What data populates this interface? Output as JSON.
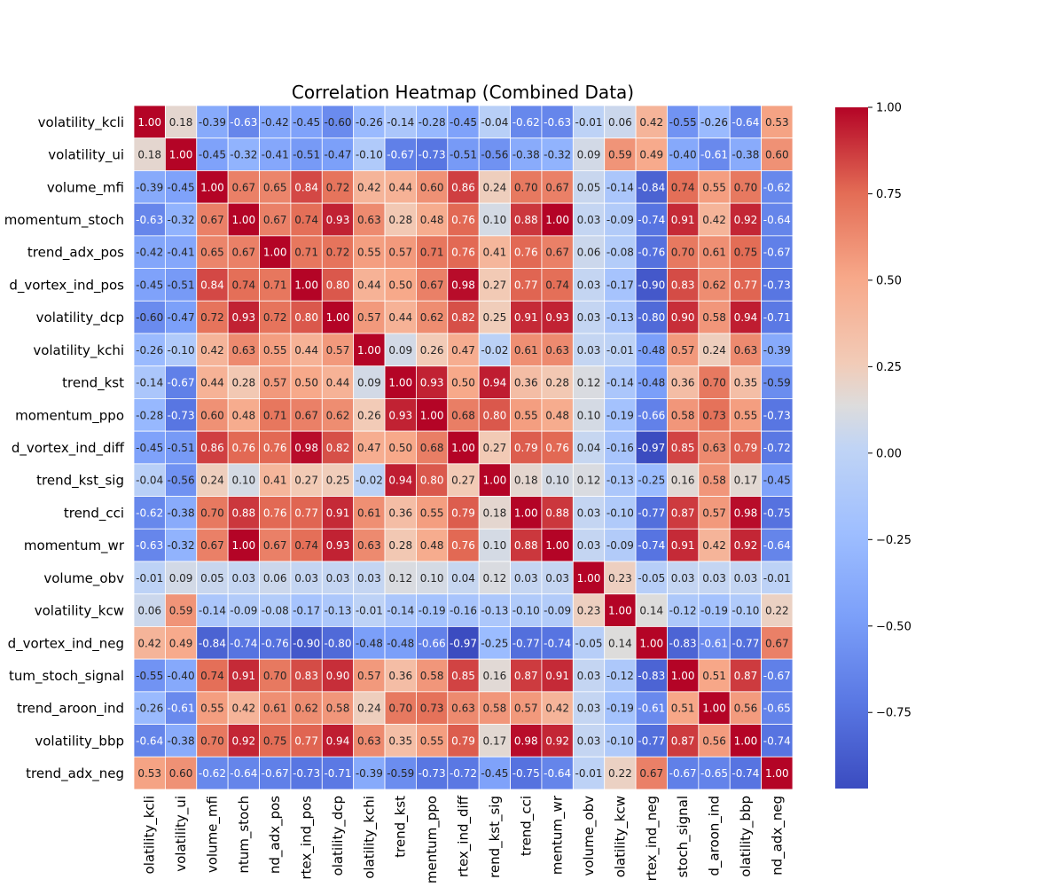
{
  "chart_data": {
    "type": "heatmap",
    "title": "Correlation Heatmap (Combined Data)",
    "colormap": "coolwarm",
    "value_format": "2 decimals",
    "labels": [
      "volatility_kcli",
      "volatility_ui",
      "volume_mfi",
      "momentum_stoch",
      "trend_adx_pos",
      "trend_vortex_ind_pos",
      "volatility_dcp",
      "volatility_kchi",
      "trend_kst",
      "momentum_ppo",
      "trend_vortex_ind_diff",
      "trend_kst_sig",
      "trend_cci",
      "momentum_wr",
      "volume_obv",
      "volatility_kcw",
      "trend_vortex_ind_neg",
      "momentum_stoch_signal",
      "trend_aroon_ind",
      "volatility_bbp",
      "trend_adx_neg"
    ],
    "matrix": [
      [
        1.0,
        0.18,
        -0.39,
        -0.63,
        -0.42,
        -0.45,
        -0.6,
        -0.26,
        -0.14,
        -0.28,
        -0.45,
        -0.04,
        -0.62,
        -0.63,
        -0.01,
        0.06,
        0.42,
        -0.55,
        -0.26,
        -0.64,
        0.53
      ],
      [
        0.18,
        1.0,
        -0.45,
        -0.32,
        -0.41,
        -0.51,
        -0.47,
        -0.1,
        -0.67,
        -0.73,
        -0.51,
        -0.56,
        -0.38,
        -0.32,
        0.09,
        0.59,
        0.49,
        -0.4,
        -0.61,
        -0.38,
        0.6
      ],
      [
        -0.39,
        -0.45,
        1.0,
        0.67,
        0.65,
        0.84,
        0.72,
        0.42,
        0.44,
        0.6,
        0.86,
        0.24,
        0.7,
        0.67,
        0.05,
        -0.14,
        -0.84,
        0.74,
        0.55,
        0.7,
        -0.62
      ],
      [
        -0.63,
        -0.32,
        0.67,
        1.0,
        0.67,
        0.74,
        0.93,
        0.63,
        0.28,
        0.48,
        0.76,
        0.1,
        0.88,
        1.0,
        0.03,
        -0.09,
        -0.74,
        0.91,
        0.42,
        0.92,
        -0.64
      ],
      [
        -0.42,
        -0.41,
        0.65,
        0.67,
        1.0,
        0.71,
        0.72,
        0.55,
        0.57,
        0.71,
        0.76,
        0.41,
        0.76,
        0.67,
        0.06,
        -0.08,
        -0.76,
        0.7,
        0.61,
        0.75,
        -0.67
      ],
      [
        -0.45,
        -0.51,
        0.84,
        0.74,
        0.71,
        1.0,
        0.8,
        0.44,
        0.5,
        0.67,
        0.98,
        0.27,
        0.77,
        0.74,
        0.03,
        -0.17,
        -0.9,
        0.83,
        0.62,
        0.77,
        -0.73
      ],
      [
        -0.6,
        -0.47,
        0.72,
        0.93,
        0.72,
        0.8,
        1.0,
        0.57,
        0.44,
        0.62,
        0.82,
        0.25,
        0.91,
        0.93,
        0.03,
        -0.13,
        -0.8,
        0.9,
        0.58,
        0.94,
        -0.71
      ],
      [
        -0.26,
        -0.1,
        0.42,
        0.63,
        0.55,
        0.44,
        0.57,
        1.0,
        0.09,
        0.26,
        0.47,
        -0.02,
        0.61,
        0.63,
        0.03,
        -0.01,
        -0.48,
        0.57,
        0.24,
        0.63,
        -0.39
      ],
      [
        -0.14,
        -0.67,
        0.44,
        0.28,
        0.57,
        0.5,
        0.44,
        0.09,
        1.0,
        0.93,
        0.5,
        0.94,
        0.36,
        0.28,
        0.12,
        -0.14,
        -0.48,
        0.36,
        0.7,
        0.35,
        -0.59
      ],
      [
        -0.28,
        -0.73,
        0.6,
        0.48,
        0.71,
        0.67,
        0.62,
        0.26,
        0.93,
        1.0,
        0.68,
        0.8,
        0.55,
        0.48,
        0.1,
        -0.19,
        -0.66,
        0.58,
        0.73,
        0.55,
        -0.73
      ],
      [
        -0.45,
        -0.51,
        0.86,
        0.76,
        0.76,
        0.98,
        0.82,
        0.47,
        0.5,
        0.68,
        1.0,
        0.27,
        0.79,
        0.76,
        0.04,
        -0.16,
        -0.97,
        0.85,
        0.63,
        0.79,
        -0.72
      ],
      [
        -0.04,
        -0.56,
        0.24,
        0.1,
        0.41,
        0.27,
        0.25,
        -0.02,
        0.94,
        0.8,
        0.27,
        1.0,
        0.18,
        0.1,
        0.12,
        -0.13,
        -0.25,
        0.16,
        0.58,
        0.17,
        -0.45
      ],
      [
        -0.62,
        -0.38,
        0.7,
        0.88,
        0.76,
        0.77,
        0.91,
        0.61,
        0.36,
        0.55,
        0.79,
        0.18,
        1.0,
        0.88,
        0.03,
        -0.1,
        -0.77,
        0.87,
        0.57,
        0.98,
        -0.75
      ],
      [
        -0.63,
        -0.32,
        0.67,
        1.0,
        0.67,
        0.74,
        0.93,
        0.63,
        0.28,
        0.48,
        0.76,
        0.1,
        0.88,
        1.0,
        0.03,
        -0.09,
        -0.74,
        0.91,
        0.42,
        0.92,
        -0.64
      ],
      [
        -0.01,
        0.09,
        0.05,
        0.03,
        0.06,
        0.03,
        0.03,
        0.03,
        0.12,
        0.1,
        0.04,
        0.12,
        0.03,
        0.03,
        1.0,
        0.23,
        -0.05,
        0.03,
        0.03,
        0.03,
        -0.01
      ],
      [
        0.06,
        0.59,
        -0.14,
        -0.09,
        -0.08,
        -0.17,
        -0.13,
        -0.01,
        -0.14,
        -0.19,
        -0.16,
        -0.13,
        -0.1,
        -0.09,
        0.23,
        1.0,
        0.14,
        -0.12,
        -0.19,
        -0.1,
        0.22
      ],
      [
        0.42,
        0.49,
        -0.84,
        -0.74,
        -0.76,
        -0.9,
        -0.8,
        -0.48,
        -0.48,
        -0.66,
        -0.97,
        -0.25,
        -0.77,
        -0.74,
        -0.05,
        0.14,
        1.0,
        -0.83,
        -0.61,
        -0.77,
        0.67
      ],
      [
        -0.55,
        -0.4,
        0.74,
        0.91,
        0.7,
        0.83,
        0.9,
        0.57,
        0.36,
        0.58,
        0.85,
        0.16,
        0.87,
        0.91,
        0.03,
        -0.12,
        -0.83,
        1.0,
        0.51,
        0.87,
        -0.67
      ],
      [
        -0.26,
        -0.61,
        0.55,
        0.42,
        0.61,
        0.62,
        0.58,
        0.24,
        0.7,
        0.73,
        0.63,
        0.58,
        0.57,
        0.42,
        0.03,
        -0.19,
        -0.61,
        0.51,
        1.0,
        0.56,
        -0.65
      ],
      [
        -0.64,
        -0.38,
        0.7,
        0.92,
        0.75,
        0.77,
        0.94,
        0.63,
        0.35,
        0.55,
        0.79,
        0.17,
        0.98,
        0.92,
        0.03,
        -0.1,
        -0.77,
        0.87,
        0.56,
        1.0,
        -0.74
      ],
      [
        0.53,
        0.6,
        -0.62,
        -0.64,
        -0.67,
        -0.73,
        -0.71,
        -0.39,
        -0.59,
        -0.73,
        -0.72,
        -0.45,
        -0.75,
        -0.64,
        -0.01,
        0.22,
        0.67,
        -0.67,
        -0.65,
        -0.74,
        1.0
      ]
    ],
    "vmin": -0.97,
    "vmax": 1.0,
    "colorbar_ticks": [
      1.0,
      0.75,
      0.5,
      0.25,
      0.0,
      -0.25,
      -0.5,
      -0.75
    ],
    "colorbar_tick_labels": [
      "1.00",
      "0.75",
      "0.50",
      "0.25",
      "0.00",
      "−0.25",
      "−0.50",
      "−0.75"
    ],
    "visible_row_labels": [
      "volatility_kcli",
      "volatility_ui",
      "volume_mfi",
      "momentum_stoch",
      "trend_adx_pos",
      "d_vortex_ind_pos",
      "volatility_dcp",
      "volatility_kchi",
      "trend_kst",
      "momentum_ppo",
      "d_vortex_ind_diff",
      "trend_kst_sig",
      "trend_cci",
      "momentum_wr",
      "volume_obv",
      "volatility_kcw",
      "d_vortex_ind_neg",
      "tum_stoch_signal",
      "trend_aroon_ind",
      "volatility_bbp",
      "trend_adx_neg"
    ],
    "visible_col_labels": [
      "olatility_kcli",
      "volatility_ui",
      "volume_mfi",
      "ntum_stoch",
      "nd_adx_pos",
      "rtex_ind_pos",
      "olatility_dcp",
      "olatility_kchi",
      "trend_kst",
      "mentum_ppo",
      "rtex_ind_diff",
      "rend_kst_sig",
      "trend_cci",
      "mentum_wr",
      "volume_obv",
      "olatility_kcw",
      "rtex_ind_neg",
      "stoch_signal",
      "d_aroon_ind",
      "olatility_bbp",
      "nd_adx_neg"
    ]
  }
}
